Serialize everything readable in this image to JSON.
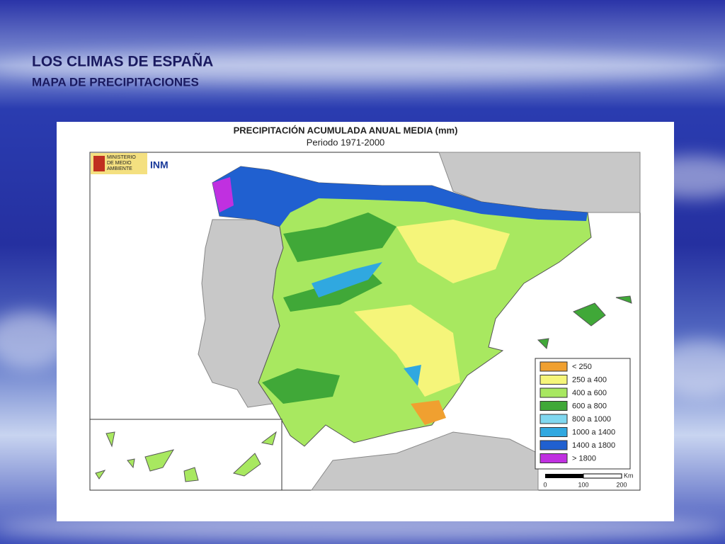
{
  "header": {
    "title": "LOS  CLIMAS DE ESPAÑA",
    "subtitle": "MAPA DE PRECIPITACIONES"
  },
  "map": {
    "title": "PRECIPITACIÓN ACUMULADA ANUAL MEDIA (mm)",
    "period": "Periodo 1971-2000",
    "logo": {
      "ministry_lines": [
        "MINISTERIO",
        "DE MEDIO",
        "AMBIENTE"
      ],
      "agency": "INM"
    },
    "legend": [
      {
        "label": "< 250",
        "color": "#f0a030"
      },
      {
        "label": "250 a 400",
        "color": "#f5f57a"
      },
      {
        "label": "400 a 600",
        "color": "#a8e860"
      },
      {
        "label": "600 a 800",
        "color": "#40a838"
      },
      {
        "label": "800 a 1000",
        "color": "#80d8f0"
      },
      {
        "label": "1000 a 1400",
        "color": "#30a8e0"
      },
      {
        "label": "1400 a 1800",
        "color": "#2060d0"
      },
      {
        "label": "> 1800",
        "color": "#c030e0"
      }
    ],
    "scale": {
      "unit": "Km",
      "ticks": [
        0,
        100,
        200
      ]
    }
  }
}
